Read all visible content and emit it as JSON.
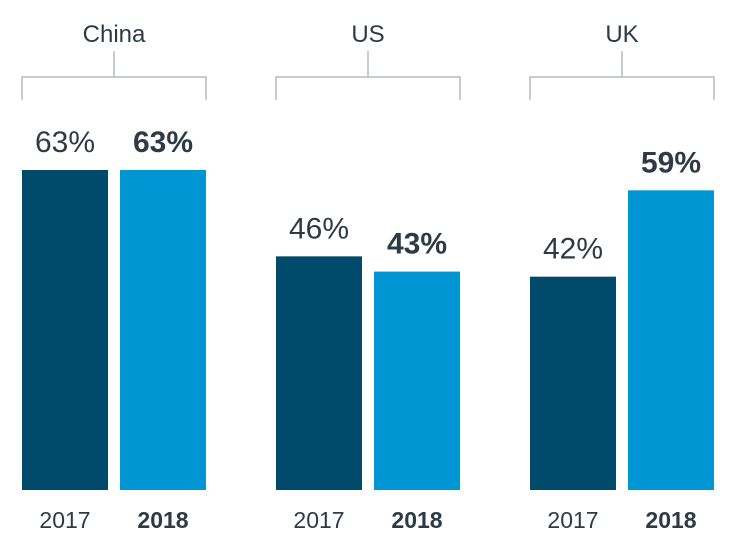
{
  "chart_data": {
    "type": "bar",
    "categories": [
      "China",
      "US",
      "UK"
    ],
    "series": [
      {
        "name": "2017",
        "values": [
          63,
          46,
          42
        ],
        "value_labels": [
          "63%",
          "46%",
          "42%"
        ],
        "color": "#004b6b",
        "bold": false
      },
      {
        "name": "2018",
        "values": [
          63,
          43,
          59
        ],
        "value_labels": [
          "63%",
          "43%",
          "59%"
        ],
        "color": "#0095d3",
        "bold": true
      }
    ],
    "unit": "%",
    "ylim": [
      0,
      63
    ],
    "grid": false,
    "legend": "none"
  }
}
